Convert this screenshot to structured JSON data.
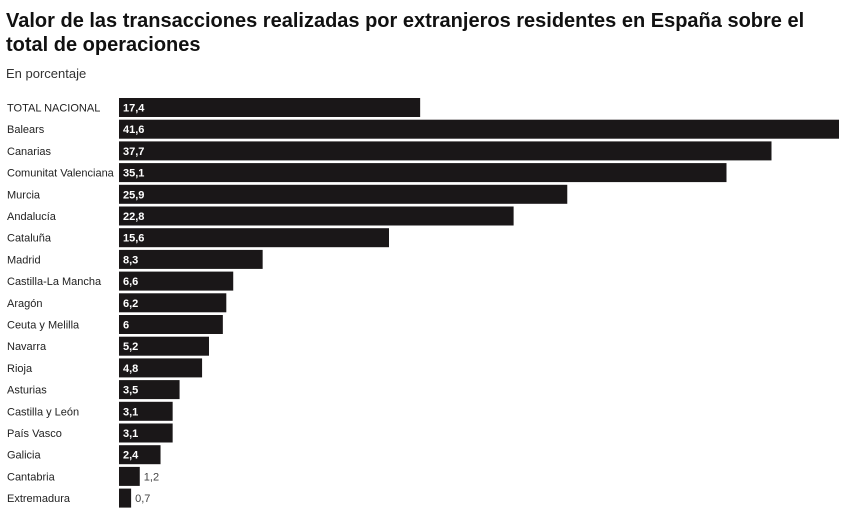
{
  "header": {
    "title": "Valor de las transacciones realizadas por extranjeros residentes en España sobre el total de operaciones",
    "subtitle": "En porcentaje"
  },
  "colors": {
    "bar": "#1a1718",
    "label_inside": "#ffffff",
    "label_outside": "#444444"
  },
  "chart_data": {
    "type": "bar",
    "orientation": "horizontal",
    "title": "Valor de las transacciones realizadas por extranjeros residentes en España sobre el total de operaciones",
    "subtitle": "En porcentaje",
    "xlabel": "",
    "ylabel": "",
    "xlim": [
      0,
      41.6
    ],
    "grid": false,
    "categories": [
      "TOTAL NACIONAL",
      "Balears",
      "Canarias",
      "Comunitat Valenciana",
      "Murcia",
      "Andalucía",
      "Cataluña",
      "Madrid",
      "Castilla-La Mancha",
      "Aragón",
      "Ceuta y Melilla",
      "Navarra",
      "Rioja",
      "Asturias",
      "Castilla y León",
      "País Vasco",
      "Galicia",
      "Cantabria",
      "Extremadura"
    ],
    "values": [
      17.4,
      41.6,
      37.7,
      35.1,
      25.9,
      22.8,
      15.6,
      8.3,
      6.6,
      6.2,
      6,
      5.2,
      4.8,
      3.5,
      3.1,
      3.1,
      2.4,
      1.2,
      0.7
    ],
    "value_labels": [
      "17,4",
      "41,6",
      "37,7",
      "35,1",
      "25,9",
      "22,8",
      "15,6",
      "8,3",
      "6,6",
      "6,2",
      "6",
      "5,2",
      "4,8",
      "3,5",
      "3,1",
      "3,1",
      "2,4",
      "1,2",
      "0,7"
    ]
  }
}
